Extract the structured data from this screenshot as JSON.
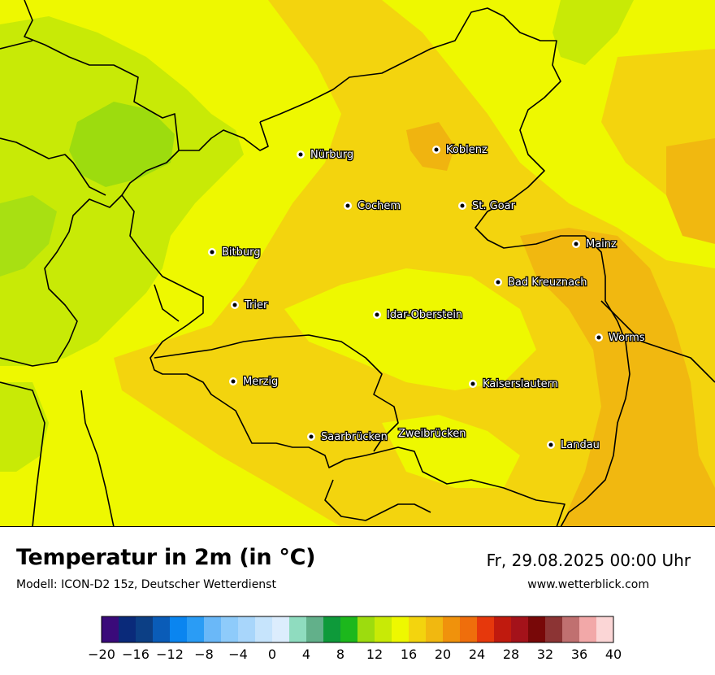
{
  "title": "Temperatur in 2m (in °C)",
  "subtitle": "Modell: ICON-D2 15z, Deutscher Wetterdienst",
  "datetime": "Fr, 29.08.2025 00:00 Uhr",
  "website": "www.wetterblick.com",
  "cities": [
    {
      "id": "nuerburg",
      "name": "Nürburg"
    },
    {
      "id": "koblenz",
      "name": "Koblenz"
    },
    {
      "id": "cochem",
      "name": "Cochem"
    },
    {
      "id": "st-goar",
      "name": "St. Goar"
    },
    {
      "id": "mainz",
      "name": "Mainz"
    },
    {
      "id": "bitburg",
      "name": "Bitburg"
    },
    {
      "id": "bad-kreuznach",
      "name": "Bad Kreuznach"
    },
    {
      "id": "trier",
      "name": "Trier"
    },
    {
      "id": "idar-oberstein",
      "name": "Idar-Oberstein"
    },
    {
      "id": "worms",
      "name": "Worms"
    },
    {
      "id": "merzig",
      "name": "Merzig"
    },
    {
      "id": "kaiserslautern",
      "name": "Kaiserslautern"
    },
    {
      "id": "saarbruecken",
      "name": "Saarbrücken"
    },
    {
      "id": "zweibruecken",
      "name": "Zweibrücken"
    },
    {
      "id": "landau",
      "name": "Landau"
    }
  ],
  "colorbar": {
    "min": -20,
    "max": 40,
    "step": 2,
    "tick_labels": [
      "−20",
      "−16",
      "−12",
      "−8",
      "−4",
      "0",
      "4",
      "8",
      "12",
      "16",
      "20",
      "24",
      "28",
      "32",
      "36",
      "40"
    ],
    "colors": [
      "#3a0a7a",
      "#0a2a7a",
      "#0c3f85",
      "#0a5cb8",
      "#0a85f0",
      "#2a9cf5",
      "#6ab8f8",
      "#8ecbfa",
      "#a8d6fb",
      "#c6e4fc",
      "#dcedfd",
      "#8fdcbf",
      "#62b08a",
      "#0e9a3a",
      "#1cb81c",
      "#9ddc0e",
      "#c8ea06",
      "#eef800",
      "#f3d40e",
      "#f1b810",
      "#f0920c",
      "#ef6e0c",
      "#e6380c",
      "#c01a0e",
      "#a4121a",
      "#780808",
      "#8c3434",
      "#c07070",
      "#f2a8a8",
      "#fbd6d6"
    ]
  },
  "map_colors": {
    "water_border": "#000000",
    "warm_yellow": "#eef800",
    "gold": "#f3d40e",
    "orange": "#f1b810",
    "lime": "#c8ea06",
    "green": "#9ddc0e"
  }
}
